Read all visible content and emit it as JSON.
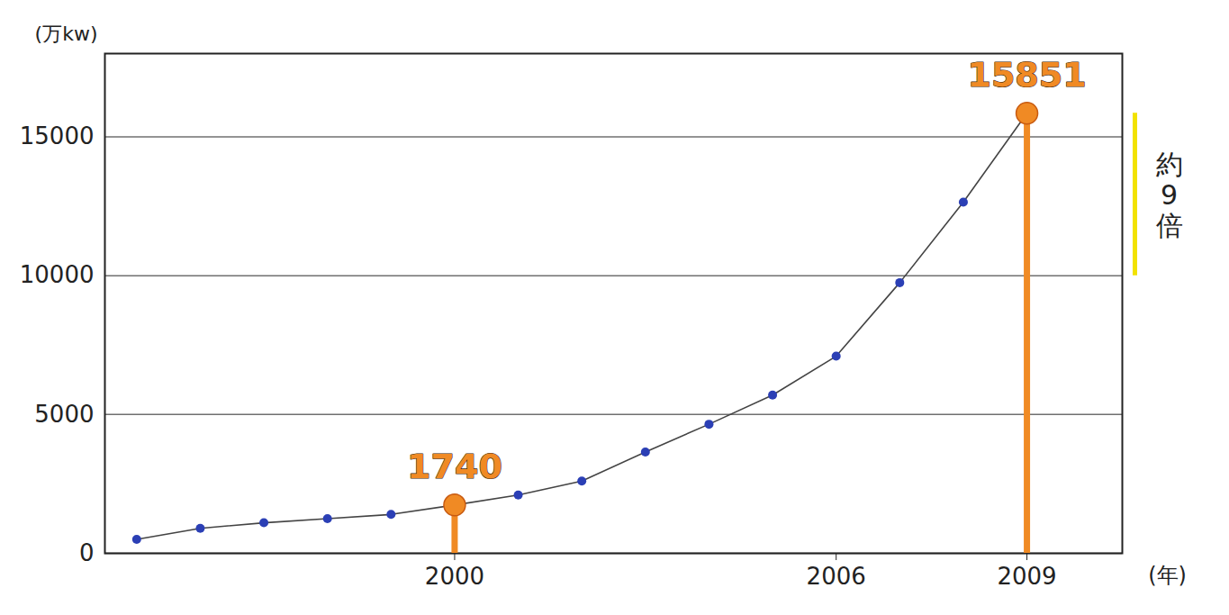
{
  "chart_data": {
    "type": "line",
    "x_label": "(年)",
    "y_label": "(万kw)",
    "x": [
      1995,
      1996,
      1997,
      1998,
      1999,
      2000,
      2001,
      2002,
      2003,
      2004,
      2005,
      2006,
      2007,
      2008,
      2009
    ],
    "values": [
      500,
      900,
      1100,
      1250,
      1400,
      1740,
      2100,
      2600,
      3650,
      4650,
      5700,
      7100,
      9750,
      12650,
      15851
    ],
    "color": "#2b3fb5",
    "marker": "circle",
    "xlim": [
      1994.5,
      2010.5
    ],
    "xticks": [
      2000,
      2006,
      2009
    ],
    "ylim": [
      0,
      18000
    ],
    "yticks": [
      0,
      5000,
      10000,
      15000
    ],
    "grid": true,
    "highlights": [
      {
        "x": 2000,
        "value": 1740,
        "color": "#f08a24"
      },
      {
        "x": 2009,
        "value": 15851,
        "color": "#f08a24"
      }
    ],
    "annotations": [
      {
        "text": "約9倍",
        "color": "#f2e200"
      }
    ]
  }
}
